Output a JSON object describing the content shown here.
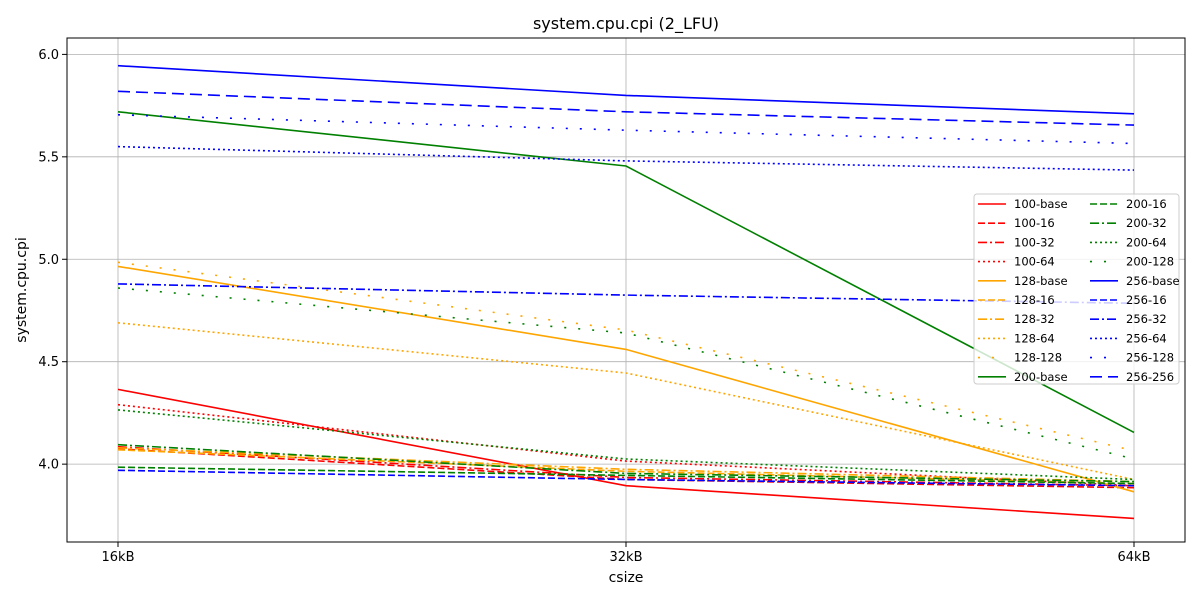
{
  "chart_data": {
    "type": "line",
    "title": "system.cpu.cpi (2_LFU)",
    "xlabel": "csize",
    "ylabel": "system.cpu.cpi",
    "categories": [
      "16kB",
      "32kB",
      "64kB"
    ],
    "ylim": [
      3.62,
      6.08
    ],
    "yticks": [
      "4.0",
      "4.5",
      "5.0",
      "5.5",
      "6.0"
    ],
    "grid": true,
    "legend_position": "center-right",
    "legend_columns": 2,
    "series": [
      {
        "name": "100-base",
        "color": "#ff0000",
        "dash": "solid",
        "values": [
          4.365,
          3.895,
          3.735
        ]
      },
      {
        "name": "100-16",
        "color": "#ff0000",
        "dash": "dashed",
        "values": [
          4.075,
          3.925,
          3.885
        ]
      },
      {
        "name": "100-32",
        "color": "#ff0000",
        "dash": "dashdot",
        "values": [
          4.085,
          3.935,
          3.895
        ]
      },
      {
        "name": "100-64",
        "color": "#ff0000",
        "dash": "dotted",
        "values": [
          4.29,
          4.015,
          3.895
        ]
      },
      {
        "name": "128-base",
        "color": "#ffa500",
        "dash": "solid",
        "values": [
          4.965,
          4.56,
          3.865
        ]
      },
      {
        "name": "128-16",
        "color": "#ffa500",
        "dash": "dashed",
        "values": [
          4.07,
          3.965,
          3.905
        ]
      },
      {
        "name": "128-32",
        "color": "#ffa500",
        "dash": "dashdot",
        "values": [
          4.08,
          3.975,
          3.915
        ]
      },
      {
        "name": "128-64",
        "color": "#ffa500",
        "dash": "dotted",
        "values": [
          4.69,
          4.445,
          3.925
        ]
      },
      {
        "name": "128-128",
        "color": "#ffa500",
        "dash": "sparsedot",
        "values": [
          4.985,
          4.655,
          4.065
        ]
      },
      {
        "name": "200-base",
        "color": "#008000",
        "dash": "solid",
        "values": [
          5.72,
          5.455,
          4.155
        ]
      },
      {
        "name": "200-16",
        "color": "#008000",
        "dash": "dashed",
        "values": [
          3.985,
          3.945,
          3.905
        ]
      },
      {
        "name": "200-32",
        "color": "#008000",
        "dash": "dashdot",
        "values": [
          4.095,
          3.955,
          3.915
        ]
      },
      {
        "name": "200-64",
        "color": "#008000",
        "dash": "dotted",
        "values": [
          4.265,
          4.025,
          3.925
        ]
      },
      {
        "name": "200-128",
        "color": "#008000",
        "dash": "sparsedot",
        "values": [
          4.86,
          4.64,
          4.025
        ]
      },
      {
        "name": "256-base",
        "color": "#0000ff",
        "dash": "solid",
        "values": [
          5.945,
          5.8,
          5.71
        ]
      },
      {
        "name": "256-16",
        "color": "#0000ff",
        "dash": "dashed",
        "values": [
          3.97,
          3.925,
          3.895
        ]
      },
      {
        "name": "256-32",
        "color": "#0000ff",
        "dash": "dashdot",
        "values": [
          4.88,
          4.825,
          4.785
        ]
      },
      {
        "name": "256-64",
        "color": "#0000ff",
        "dash": "dotted",
        "values": [
          5.55,
          5.48,
          5.435
        ]
      },
      {
        "name": "256-128",
        "color": "#0000ff",
        "dash": "sparsedot",
        "values": [
          5.705,
          5.63,
          5.565
        ]
      },
      {
        "name": "256-256",
        "color": "#0000ff",
        "dash": "longdash",
        "values": [
          5.82,
          5.72,
          5.655
        ]
      }
    ]
  }
}
